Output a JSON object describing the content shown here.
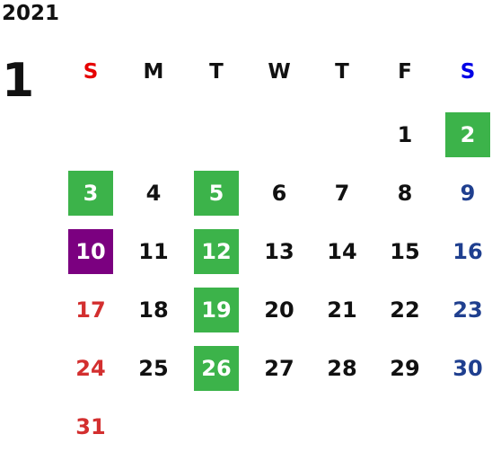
{
  "year": "2021",
  "month": "1",
  "weekdays": [
    "S",
    "M",
    "T",
    "W",
    "T",
    "F",
    "S"
  ],
  "days": [
    {
      "n": "1",
      "col": 5,
      "row": 0
    },
    {
      "n": "2",
      "col": 6,
      "row": 0,
      "hl": "green"
    },
    {
      "n": "3",
      "col": 0,
      "row": 1,
      "hl": "green"
    },
    {
      "n": "4",
      "col": 1,
      "row": 1
    },
    {
      "n": "5",
      "col": 2,
      "row": 1,
      "hl": "green"
    },
    {
      "n": "6",
      "col": 3,
      "row": 1
    },
    {
      "n": "7",
      "col": 4,
      "row": 1
    },
    {
      "n": "8",
      "col": 5,
      "row": 1
    },
    {
      "n": "9",
      "col": 6,
      "row": 1
    },
    {
      "n": "10",
      "col": 0,
      "row": 2,
      "hl": "purple"
    },
    {
      "n": "11",
      "col": 1,
      "row": 2
    },
    {
      "n": "12",
      "col": 2,
      "row": 2,
      "hl": "green"
    },
    {
      "n": "13",
      "col": 3,
      "row": 2
    },
    {
      "n": "14",
      "col": 4,
      "row": 2
    },
    {
      "n": "15",
      "col": 5,
      "row": 2
    },
    {
      "n": "16",
      "col": 6,
      "row": 2
    },
    {
      "n": "17",
      "col": 0,
      "row": 3
    },
    {
      "n": "18",
      "col": 1,
      "row": 3
    },
    {
      "n": "19",
      "col": 2,
      "row": 3,
      "hl": "green"
    },
    {
      "n": "20",
      "col": 3,
      "row": 3
    },
    {
      "n": "21",
      "col": 4,
      "row": 3
    },
    {
      "n": "22",
      "col": 5,
      "row": 3
    },
    {
      "n": "23",
      "col": 6,
      "row": 3
    },
    {
      "n": "24",
      "col": 0,
      "row": 4
    },
    {
      "n": "25",
      "col": 1,
      "row": 4
    },
    {
      "n": "26",
      "col": 2,
      "row": 4,
      "hl": "green"
    },
    {
      "n": "27",
      "col": 3,
      "row": 4
    },
    {
      "n": "28",
      "col": 4,
      "row": 4
    },
    {
      "n": "29",
      "col": 5,
      "row": 4
    },
    {
      "n": "30",
      "col": 6,
      "row": 4
    },
    {
      "n": "31",
      "col": 0,
      "row": 5
    }
  ],
  "colors": {
    "holiday_green": "#3cb34a",
    "holiday_purple": "#7b0080",
    "sunday": "#d32f2f",
    "saturday": "#1f3f8f"
  }
}
